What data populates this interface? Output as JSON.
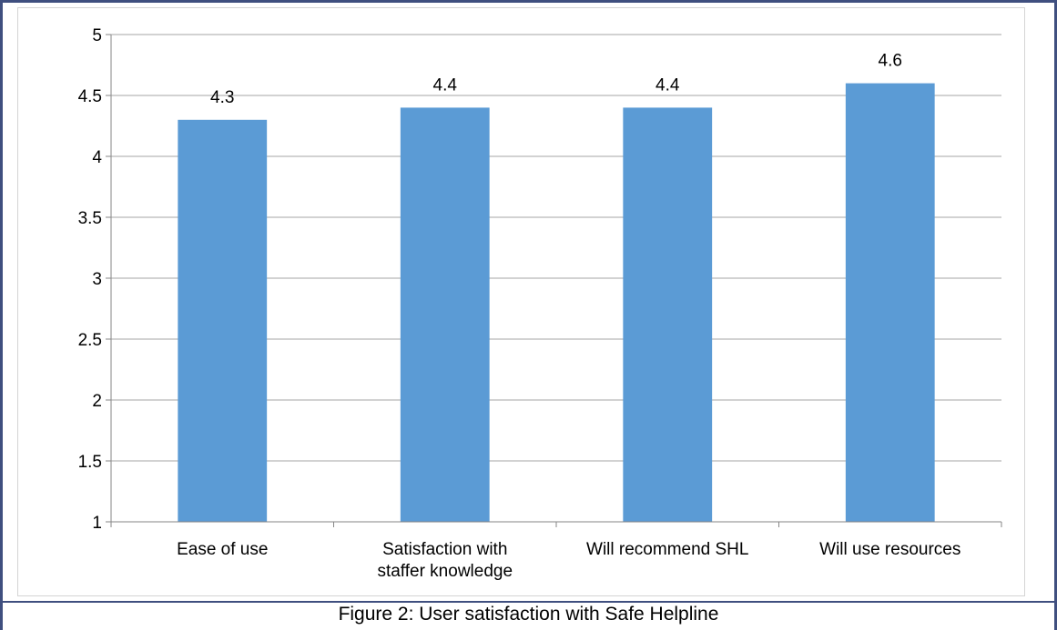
{
  "caption": "Figure 2:  User satisfaction with Safe Helpline",
  "colors": {
    "bar": "#5b9bd5",
    "grid": "#a6a6a6",
    "axis": "#868686",
    "frame": "#3f4f7f"
  },
  "chart_data": {
    "type": "bar",
    "title": "",
    "xlabel": "",
    "ylabel": "",
    "categories": [
      [
        "Ease of use"
      ],
      [
        "Satisfaction with",
        "staffer knowledge"
      ],
      [
        "Will recommend SHL"
      ],
      [
        "Will use resources"
      ]
    ],
    "values": [
      4.3,
      4.4,
      4.4,
      4.6
    ],
    "data_labels": [
      "4.3",
      "4.4",
      "4.4",
      "4.6"
    ],
    "ylim": [
      1,
      5
    ],
    "yticks": [
      1,
      1.5,
      2,
      2.5,
      3,
      3.5,
      4,
      4.5,
      5
    ],
    "ytick_labels": [
      "1",
      "1.5",
      "2",
      "2.5",
      "3",
      "3.5",
      "4",
      "4.5",
      "5"
    ],
    "grid": true,
    "legend": "none"
  }
}
